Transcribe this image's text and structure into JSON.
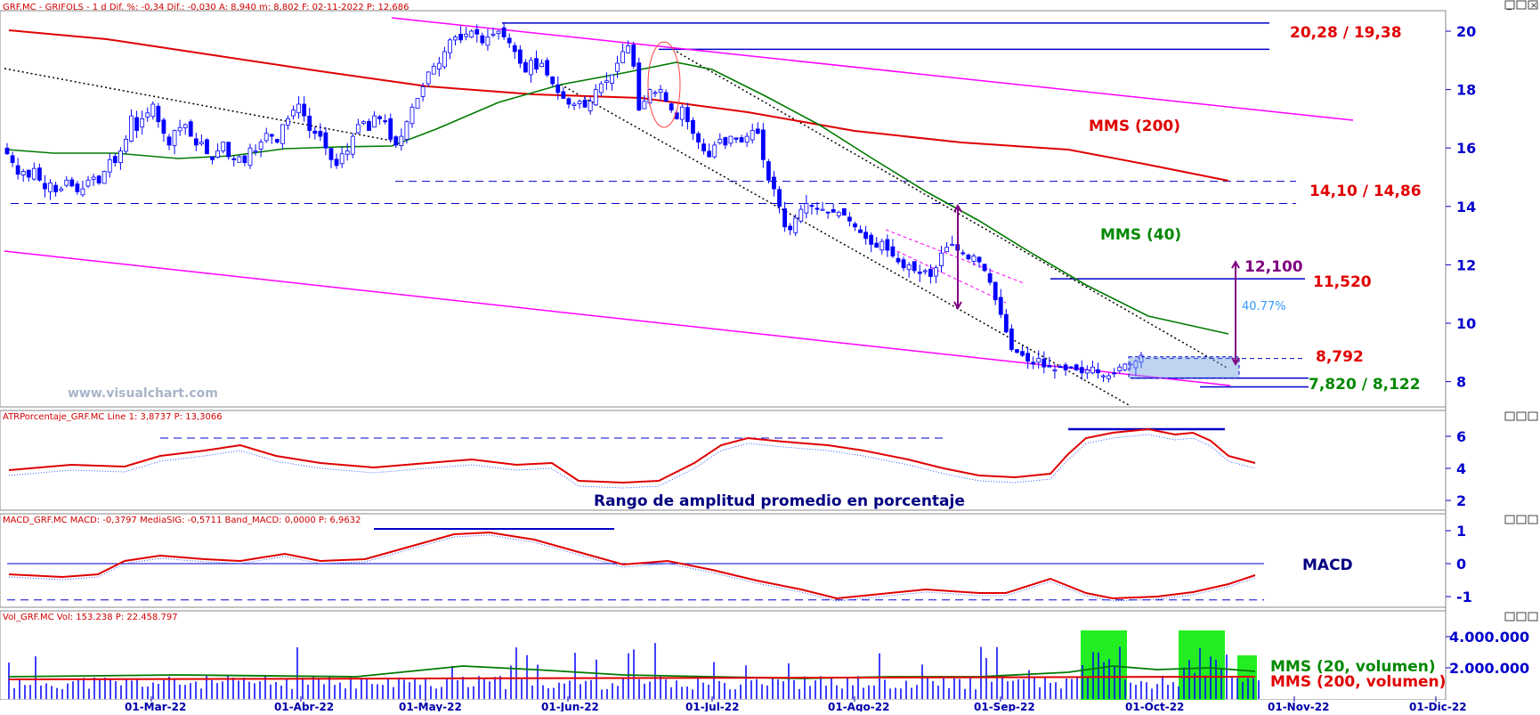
{
  "watermark": "www.visualchart.com",
  "panels": {
    "price": {
      "header": "GRF.MC - GRIFOLS - 1 d Dif. %: -0,34 Dif.: -0,030 A: 8,940 m: 8,802 F: 02-11-2022 P: 12,686"
    },
    "atr": {
      "header": "ATRPorcentaje_GRF.MC Line 1: 3,8737 P: 13,3066"
    },
    "macd": {
      "header": "MACD_GRF.MC MACD: -0,3797 MediaSIG: -0,5711 Band_MACD: 0,0000 P: 6,9632"
    },
    "volume": {
      "header": "Vol_GRF.MC Vol: 153.238 P: 22.458.797"
    }
  },
  "labels": {
    "resistance": "20,28 / 19,38",
    "mms200": "MMS (200)",
    "support1": "14,10 / 14,86",
    "mms40": "MMS (40)",
    "target": "12,100",
    "level1152": "11,520",
    "pct": "40.77%",
    "level8792": "8,792",
    "support2": "7,820 / 8,122",
    "atr_caption": "Rango de amplitud promedio en porcentaje",
    "macd_caption": "MACD",
    "vol_ma20": "MMS (20, volumen)",
    "vol_ma200": "MMS (200, volumen)"
  },
  "colors": {
    "price_up": "#0000ff",
    "price_down": "#0000ff",
    "mms200": "#e00000",
    "mms40": "#007a00",
    "channel": "#ff00ff",
    "annotation_green": "#008800",
    "annotation_red": "#e00000",
    "annotation_purple": "#800080",
    "volume_highlight": "#22ee22"
  },
  "chart_data": [
    {
      "type": "candlestick",
      "ticker": "GRF.MC",
      "y_ticks": [
        8,
        10,
        12,
        14,
        16,
        18,
        20
      ],
      "ylim": [
        7.3,
        20.6
      ],
      "x_ticks": [
        "01-Mar-22",
        "01-Abr-22",
        "01-May-22",
        "01-Jun-22",
        "01-Jul-22",
        "01-Ago-22",
        "01-Sep-22",
        "01-Oct-22",
        "01-Nov-22",
        "01-Dic-22"
      ],
      "start_date": "2022-02-01",
      "close": [
        15.8,
        15.5,
        15.1,
        15.2,
        15.0,
        15.3,
        14.9,
        14.6,
        14.8,
        14.5,
        14.6,
        14.9,
        14.7,
        14.5,
        14.6,
        14.9,
        15.0,
        14.8,
        15.2,
        15.6,
        15.5,
        15.9,
        16.3,
        17.1,
        16.6,
        17.0,
        17.2,
        17.5,
        16.9,
        16.5,
        16.1,
        16.6,
        16.7,
        16.8,
        16.4,
        16.1,
        16.2,
        15.8,
        15.6,
        15.9,
        16.2,
        15.7,
        15.6,
        15.7,
        15.5,
        16.0,
        15.9,
        16.2,
        16.5,
        16.4,
        16.2,
        16.8,
        17.0,
        17.3,
        17.5,
        17.1,
        16.6,
        16.5,
        16.4,
        16.0,
        15.6,
        15.4,
        15.8,
        15.9,
        16.4,
        16.8,
        16.9,
        16.6,
        17.1,
        17.0,
        16.9,
        16.3,
        16.1,
        16.4,
        16.9,
        17.4,
        17.7,
        18.1,
        18.6,
        18.8,
        18.9,
        19.3,
        19.7,
        19.8,
        19.7,
        19.9,
        20.0,
        19.9,
        19.6,
        19.8,
        19.9,
        20.0,
        19.8,
        19.6,
        19.3,
        18.9,
        18.6,
        19.0,
        18.7,
        18.9,
        18.5,
        18.2,
        17.9,
        17.7,
        17.5,
        17.5,
        17.6,
        17.4,
        17.6,
        18.0,
        18.2,
        18.3,
        18.5,
        18.9,
        19.3,
        19.5,
        18.8,
        17.3,
        17.6,
        18.0,
        17.9,
        18.0,
        17.6,
        17.3,
        17.0,
        17.4,
        16.9,
        16.5,
        16.2,
        15.9,
        15.7,
        16.1,
        16.3,
        16.1,
        16.4,
        16.3,
        16.2,
        16.4,
        16.6,
        16.5,
        15.6,
        14.9,
        14.6,
        14.0,
        13.3,
        13.2,
        13.6,
        13.9,
        14.1,
        14.0,
        13.9,
        13.9,
        13.8,
        13.8,
        13.8,
        13.7,
        13.5,
        13.3,
        13.1,
        12.9,
        12.7,
        12.6,
        12.8,
        12.5,
        12.3,
        12.1,
        11.9,
        12.0,
        11.8,
        11.7,
        11.8,
        11.6,
        11.9,
        12.4,
        12.6,
        12.7,
        12.5,
        12.4,
        12.2,
        12.3,
        12.1,
        11.8,
        11.4,
        10.8,
        10.3,
        9.7,
        9.1,
        9.0,
        8.9,
        8.7,
        8.6,
        8.8,
        8.5,
        8.5,
        8.4,
        8.5,
        8.4,
        8.5,
        8.4,
        8.3,
        8.4,
        8.5,
        8.3,
        8.2,
        8.2,
        8.3,
        8.5,
        8.6,
        8.6,
        8.7,
        8.9
      ],
      "series": [
        {
          "name": "MMS (200)",
          "values_approx": {
            "start": 19.9,
            "end": 14.9
          }
        },
        {
          "name": "MMS (40)",
          "values_approx": {
            "peak": 19.1,
            "end": 9.6
          }
        }
      ],
      "levels": [
        20.28,
        19.38,
        14.86,
        14.1,
        11.52,
        8.792,
        8.122,
        7.82
      ],
      "projection": {
        "from": 8.6,
        "to": 12.1,
        "percent": 40.77
      }
    },
    {
      "type": "line",
      "name": "ATRPorcentaje",
      "y_ticks": [
        2,
        4,
        6
      ],
      "ylim": [
        1.0,
        7.0
      ],
      "series": [
        {
          "name": "Line 1",
          "last": 3.8737
        }
      ]
    },
    {
      "type": "line",
      "name": "MACD",
      "y_ticks": [
        -1,
        0,
        1
      ],
      "ylim": [
        -1.2,
        1.1
      ],
      "series": [
        {
          "name": "MACD",
          "last": -0.3797
        },
        {
          "name": "MediaSIG",
          "last": -0.5711
        }
      ]
    },
    {
      "type": "bar",
      "name": "Volumen",
      "y_ticks": [
        "2.000.000",
        "4.000.000"
      ],
      "y_tick_values": [
        2000000,
        4000000
      ],
      "ylim": [
        0,
        4300000
      ],
      "series": [
        {
          "name": "MMS (20, volumen)"
        },
        {
          "name": "MMS (200, volumen)"
        }
      ],
      "last": 153238
    }
  ]
}
